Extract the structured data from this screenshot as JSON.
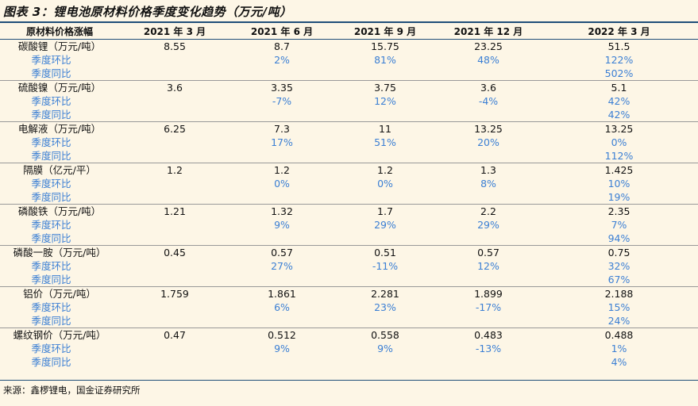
{
  "title": "图表 3：锂电池原材料价格季度变化趋势（万元/吨）",
  "headers": [
    "原材料价格涨幅",
    "2021 年 3 月",
    "2021 年 6 月",
    "2021 年 9 月",
    "2021 年 12 月",
    "2022 年 3 月"
  ],
  "rows": [
    {
      "label": "碳酸锂（万元/吨）",
      "values": [
        "8.55",
        "8.7",
        "15.75",
        "23.25",
        "51.5"
      ],
      "sub": false
    },
    {
      "label": "季度环比",
      "values": [
        "",
        "2%",
        "81%",
        "48%",
        "122%"
      ],
      "sub": true
    },
    {
      "label": "季度同比",
      "values": [
        "",
        "",
        "",
        "",
        "502%"
      ],
      "sub": true
    },
    {
      "label": "硫酸镍（万元/吨）",
      "values": [
        "3.6",
        "3.35",
        "3.75",
        "3.6",
        "5.1"
      ],
      "sub": false
    },
    {
      "label": "季度环比",
      "values": [
        "",
        "-7%",
        "12%",
        "-4%",
        "42%"
      ],
      "sub": true
    },
    {
      "label": "季度同比",
      "values": [
        "",
        "",
        "",
        "",
        "42%"
      ],
      "sub": true
    },
    {
      "label": "电解液（万元/吨）",
      "values": [
        "6.25",
        "7.3",
        "11",
        "13.25",
        "13.25"
      ],
      "sub": false
    },
    {
      "label": "季度环比",
      "values": [
        "",
        "17%",
        "51%",
        "20%",
        "0%"
      ],
      "sub": true
    },
    {
      "label": "季度同比",
      "values": [
        "",
        "",
        "",
        "",
        "112%"
      ],
      "sub": true
    },
    {
      "label": "隔膜（亿元/平）",
      "values": [
        "1.2",
        "1.2",
        "1.2",
        "1.3",
        "1.425"
      ],
      "sub": false
    },
    {
      "label": "季度环比",
      "values": [
        "",
        "0%",
        "0%",
        "8%",
        "10%"
      ],
      "sub": true
    },
    {
      "label": "季度同比",
      "values": [
        "",
        "",
        "",
        "",
        "19%"
      ],
      "sub": true
    },
    {
      "label": "磷酸铁（万元/吨）",
      "values": [
        "1.21",
        "1.32",
        "1.7",
        "2.2",
        "2.35"
      ],
      "sub": false
    },
    {
      "label": "季度环比",
      "values": [
        "",
        "9%",
        "29%",
        "29%",
        "7%"
      ],
      "sub": true
    },
    {
      "label": "季度同比",
      "values": [
        "",
        "",
        "",
        "",
        "94%"
      ],
      "sub": true
    },
    {
      "label": "磷酸一胺（万元/吨）",
      "values": [
        "0.45",
        "0.57",
        "0.51",
        "0.57",
        "0.75"
      ],
      "sub": false
    },
    {
      "label": "季度环比",
      "values": [
        "",
        "27%",
        "-11%",
        "12%",
        "32%"
      ],
      "sub": true
    },
    {
      "label": "季度同比",
      "values": [
        "",
        "",
        "",
        "",
        "67%"
      ],
      "sub": true
    },
    {
      "label": "铝价（万元/吨）",
      "values": [
        "1.759",
        "1.861",
        "2.281",
        "1.899",
        "2.188"
      ],
      "sub": false
    },
    {
      "label": "季度环比",
      "values": [
        "",
        "6%",
        "23%",
        "-17%",
        "15%"
      ],
      "sub": true
    },
    {
      "label": "季度同比",
      "values": [
        "",
        "",
        "",
        "",
        "24%"
      ],
      "sub": true
    },
    {
      "label": "螺纹钢价（万元/吨）",
      "values": [
        "0.47",
        "0.512",
        "0.558",
        "0.483",
        "0.488"
      ],
      "sub": false
    },
    {
      "label": "季度环比",
      "values": [
        "",
        "9%",
        "9%",
        "-13%",
        "1%"
      ],
      "sub": true
    },
    {
      "label": "季度同比",
      "values": [
        "",
        "",
        "",
        "",
        "4%"
      ],
      "sub": true
    }
  ],
  "source": "来源：鑫椤锂电，国金证券研究所",
  "colors": {
    "accent": "#3b7fd4",
    "rule": "#1f4e79",
    "background": "#fdf6e6"
  }
}
